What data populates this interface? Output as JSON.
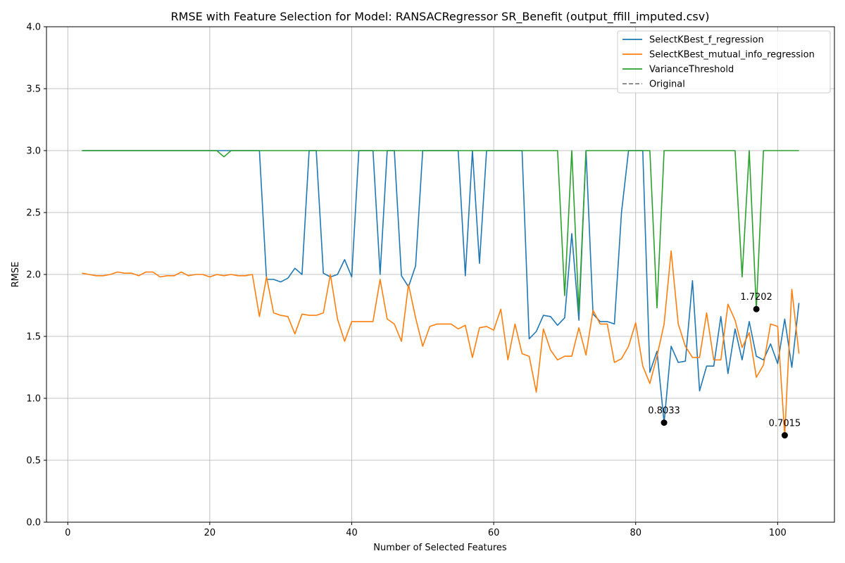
{
  "chart_data": {
    "type": "line",
    "title": "RMSE with Feature Selection for Model: RANSACRegressor SR_Benefit (output_ffill_imputed.csv)",
    "xlabel": "Number of Selected Features",
    "ylabel": "RMSE",
    "xlim": [
      -3,
      108
    ],
    "ylim": [
      0,
      4.0
    ],
    "xticks": [
      0,
      20,
      40,
      60,
      80,
      100
    ],
    "yticks": [
      0.0,
      0.5,
      1.0,
      1.5,
      2.0,
      2.5,
      3.0,
      3.5,
      4.0
    ],
    "xtick_labels": [
      "0",
      "20",
      "40",
      "60",
      "80",
      "100"
    ],
    "ytick_labels": [
      "0.0",
      "0.5",
      "1.0",
      "1.5",
      "2.0",
      "2.5",
      "3.0",
      "3.5",
      "4.0"
    ],
    "grid": true,
    "legend_position": "top-right",
    "series": [
      {
        "name": "SelectKBest_f_regression",
        "color": "#1f77b4",
        "dashed": false,
        "x": [
          2,
          3,
          4,
          5,
          6,
          7,
          8,
          9,
          10,
          11,
          12,
          13,
          14,
          15,
          16,
          17,
          18,
          19,
          20,
          21,
          22,
          23,
          24,
          25,
          26,
          27,
          28,
          29,
          30,
          31,
          32,
          33,
          34,
          35,
          36,
          37,
          38,
          39,
          40,
          41,
          42,
          43,
          44,
          45,
          46,
          47,
          48,
          49,
          50,
          51,
          52,
          53,
          54,
          55,
          56,
          57,
          58,
          59,
          60,
          61,
          62,
          63,
          64,
          65,
          66,
          67,
          68,
          69,
          70,
          71,
          72,
          73,
          74,
          75,
          76,
          77,
          78,
          79,
          80,
          81,
          82,
          83,
          84,
          85,
          86,
          87,
          88,
          89,
          90,
          91,
          92,
          93,
          94,
          95,
          96,
          97,
          98,
          99,
          100,
          101,
          102,
          103
        ],
        "y": [
          3.0,
          3.0,
          3.0,
          3.0,
          3.0,
          3.0,
          3.0,
          3.0,
          3.0,
          3.0,
          3.0,
          3.0,
          3.0,
          3.0,
          3.0,
          3.0,
          3.0,
          3.0,
          3.0,
          3.0,
          3.0,
          3.0,
          3.0,
          3.0,
          3.0,
          3.0,
          1.96,
          1.96,
          1.94,
          1.97,
          2.05,
          2.0,
          3.0,
          3.0,
          2.01,
          1.98,
          2.0,
          2.12,
          1.98,
          3.0,
          3.0,
          3.0,
          2.0,
          3.0,
          3.0,
          1.99,
          1.9,
          2.07,
          3.0,
          3.0,
          3.0,
          3.0,
          3.0,
          3.0,
          1.99,
          3.0,
          2.09,
          3.0,
          3.0,
          3.0,
          3.0,
          3.0,
          3.0,
          1.48,
          1.54,
          1.67,
          1.66,
          1.59,
          1.65,
          2.33,
          1.63,
          3.0,
          1.68,
          1.62,
          1.62,
          1.6,
          2.5,
          3.0,
          3.0,
          3.0,
          1.21,
          1.38,
          0.8033,
          1.42,
          1.29,
          1.3,
          1.95,
          1.06,
          1.26,
          1.26,
          1.66,
          1.2,
          1.56,
          1.31,
          1.62,
          1.34,
          1.31,
          1.44,
          1.28,
          1.64,
          1.25,
          1.77
        ]
      },
      {
        "name": "SelectKBest_mutual_info_regression",
        "color": "#ff7f0e",
        "dashed": false,
        "x": [
          2,
          3,
          4,
          5,
          6,
          7,
          8,
          9,
          10,
          11,
          12,
          13,
          14,
          15,
          16,
          17,
          18,
          19,
          20,
          21,
          22,
          23,
          24,
          25,
          26,
          27,
          28,
          29,
          30,
          31,
          32,
          33,
          34,
          35,
          36,
          37,
          38,
          39,
          40,
          41,
          42,
          43,
          44,
          45,
          46,
          47,
          48,
          49,
          50,
          51,
          52,
          53,
          54,
          55,
          56,
          57,
          58,
          59,
          60,
          61,
          62,
          63,
          64,
          65,
          66,
          67,
          68,
          69,
          70,
          71,
          72,
          73,
          74,
          75,
          76,
          77,
          78,
          79,
          80,
          81,
          82,
          83,
          84,
          85,
          86,
          87,
          88,
          89,
          90,
          91,
          92,
          93,
          94,
          95,
          96,
          97,
          98,
          99,
          100,
          101,
          102,
          103
        ],
        "y": [
          2.01,
          2.0,
          1.99,
          1.99,
          2.0,
          2.02,
          2.01,
          2.01,
          1.99,
          2.02,
          2.02,
          1.98,
          1.99,
          1.99,
          2.02,
          1.99,
          2.0,
          2.0,
          1.98,
          2.0,
          1.99,
          2.0,
          1.99,
          1.99,
          2.0,
          1.66,
          1.98,
          1.69,
          1.67,
          1.66,
          1.52,
          1.68,
          1.67,
          1.67,
          1.69,
          2.0,
          1.64,
          1.46,
          1.62,
          1.62,
          1.62,
          1.62,
          1.96,
          1.64,
          1.6,
          1.46,
          1.92,
          1.65,
          1.42,
          1.58,
          1.6,
          1.6,
          1.6,
          1.56,
          1.59,
          1.33,
          1.57,
          1.58,
          1.55,
          1.72,
          1.31,
          1.6,
          1.36,
          1.34,
          1.05,
          1.56,
          1.39,
          1.31,
          1.34,
          1.34,
          1.57,
          1.35,
          1.71,
          1.6,
          1.6,
          1.29,
          1.32,
          1.42,
          1.61,
          1.26,
          1.12,
          1.34,
          1.6,
          2.19,
          1.6,
          1.42,
          1.33,
          1.33,
          1.69,
          1.31,
          1.31,
          1.76,
          1.63,
          1.41,
          1.53,
          1.17,
          1.27,
          1.6,
          1.58,
          0.7015,
          1.88,
          1.36
        ]
      },
      {
        "name": "VarianceThreshold",
        "color": "#2ca02c",
        "dashed": false,
        "x": [
          2,
          3,
          4,
          5,
          6,
          7,
          8,
          9,
          10,
          11,
          12,
          13,
          14,
          15,
          16,
          17,
          18,
          19,
          20,
          21,
          22,
          23,
          24,
          25,
          26,
          27,
          28,
          29,
          30,
          31,
          32,
          33,
          34,
          35,
          36,
          37,
          38,
          39,
          40,
          41,
          42,
          43,
          44,
          45,
          46,
          47,
          48,
          49,
          50,
          51,
          52,
          53,
          54,
          55,
          56,
          57,
          58,
          59,
          60,
          61,
          62,
          63,
          64,
          65,
          66,
          67,
          68,
          69,
          70,
          71,
          72,
          73,
          74,
          75,
          76,
          77,
          78,
          79,
          80,
          81,
          82,
          83,
          84,
          85,
          86,
          87,
          88,
          89,
          90,
          91,
          92,
          93,
          94,
          95,
          96,
          97,
          98,
          99,
          100,
          101,
          102,
          103
        ],
        "y": [
          3.0,
          3.0,
          3.0,
          3.0,
          3.0,
          3.0,
          3.0,
          3.0,
          3.0,
          3.0,
          3.0,
          3.0,
          3.0,
          3.0,
          3.0,
          3.0,
          3.0,
          3.0,
          3.0,
          3.0,
          2.95,
          3.0,
          3.0,
          3.0,
          3.0,
          3.0,
          3.0,
          3.0,
          3.0,
          3.0,
          3.0,
          3.0,
          3.0,
          3.0,
          3.0,
          3.0,
          3.0,
          3.0,
          3.0,
          3.0,
          3.0,
          3.0,
          3.0,
          3.0,
          3.0,
          3.0,
          3.0,
          3.0,
          3.0,
          3.0,
          3.0,
          3.0,
          3.0,
          3.0,
          3.0,
          3.0,
          3.0,
          3.0,
          3.0,
          3.0,
          3.0,
          3.0,
          3.0,
          3.0,
          3.0,
          3.0,
          3.0,
          3.0,
          1.83,
          3.0,
          1.7,
          3.0,
          3.0,
          3.0,
          3.0,
          3.0,
          3.0,
          3.0,
          3.0,
          3.0,
          3.0,
          1.73,
          3.0,
          3.0,
          3.0,
          3.0,
          3.0,
          3.0,
          3.0,
          3.0,
          3.0,
          3.0,
          3.0,
          1.98,
          3.0,
          1.7202,
          3.0,
          3.0,
          3.0,
          3.0,
          3.0,
          3.0
        ]
      },
      {
        "name": "Original",
        "color": "#7f7f7f",
        "dashed": true,
        "x": [],
        "y": []
      }
    ],
    "annotations": [
      {
        "x": 84,
        "y": 0.8033,
        "text": "0.8033"
      },
      {
        "x": 101,
        "y": 0.7015,
        "text": "0.7015"
      },
      {
        "x": 97,
        "y": 1.7202,
        "text": "1.7202"
      }
    ]
  }
}
